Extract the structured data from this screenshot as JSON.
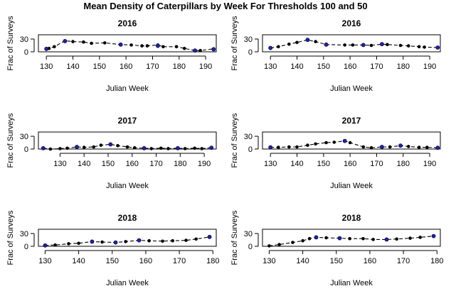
{
  "figure": {
    "title": "Mean Density of Caterpillars by Week For Thresholds 100 and 50"
  },
  "chart_data": [
    {
      "type": "line",
      "title": "2016",
      "xlabel": "Julian Week",
      "ylabel": "Frac of Surveys",
      "xlim": [
        127,
        194
      ],
      "ylim": [
        0,
        40
      ],
      "xticks": [
        130,
        140,
        150,
        160,
        170,
        180,
        190
      ],
      "yticks": [
        0,
        30
      ],
      "series": [
        {
          "values": [
            [
              130,
              6
            ],
            [
              131,
              8
            ],
            [
              133,
              12
            ],
            [
              137,
              26
            ],
            [
              140,
              24
            ],
            [
              144,
              23
            ],
            [
              147,
              20
            ],
            [
              152,
              21
            ],
            [
              158,
              17
            ],
            [
              162,
              16
            ],
            [
              166,
              14
            ],
            [
              168,
              14
            ],
            [
              172,
              16
            ],
            [
              174,
              12
            ],
            [
              179,
              12
            ],
            [
              182,
              8
            ],
            [
              186,
              3
            ],
            [
              188,
              3
            ],
            [
              193,
              7
            ]
          ]
        },
        {
          "values": [
            [
              130,
              7
            ],
            [
              137,
              25
            ],
            [
              158,
              17
            ],
            [
              172,
              14
            ],
            [
              186,
              3
            ],
            [
              193,
              6
            ]
          ],
          "color": "#1f1fbf"
        }
      ]
    },
    {
      "type": "line",
      "title": "2016",
      "xlabel": "Julian Week",
      "ylabel": "Frac of Surveys",
      "xlim": [
        127,
        194
      ],
      "ylim": [
        0,
        40
      ],
      "xticks": [
        130,
        140,
        150,
        160,
        170,
        180,
        190
      ],
      "yticks": [
        0,
        30
      ],
      "series": [
        {
          "values": [
            [
              130,
              9
            ],
            [
              133,
              12
            ],
            [
              137,
              18
            ],
            [
              140,
              22
            ],
            [
              144,
              28
            ],
            [
              147,
              24
            ],
            [
              151,
              17
            ],
            [
              158,
              16
            ],
            [
              161,
              16
            ],
            [
              165,
              16
            ],
            [
              168,
              15
            ],
            [
              172,
              18
            ],
            [
              174,
              17
            ],
            [
              179,
              15
            ],
            [
              182,
              14
            ],
            [
              186,
              12
            ],
            [
              188,
              11
            ],
            [
              193,
              10
            ]
          ]
        },
        {
          "values": [
            [
              130,
              9
            ],
            [
              144,
              28
            ],
            [
              151,
              17
            ],
            [
              165,
              16
            ],
            [
              172,
              18
            ],
            [
              193,
              10
            ]
          ],
          "color": "#1f1fbf"
        }
      ]
    },
    {
      "type": "line",
      "title": "2017",
      "xlabel": "Julian Week",
      "ylabel": "Frac of Surveys",
      "xlim": [
        121,
        195
      ],
      "ylim": [
        0,
        40
      ],
      "xticks": [
        130,
        140,
        150,
        160,
        170,
        180,
        190
      ],
      "yticks": [
        0,
        30
      ],
      "series": [
        {
          "values": [
            [
              123,
              2
            ],
            [
              126,
              0
            ],
            [
              130,
              1
            ],
            [
              133,
              2
            ],
            [
              137,
              5
            ],
            [
              140,
              4
            ],
            [
              144,
              5
            ],
            [
              147,
              9
            ],
            [
              151,
              11
            ],
            [
              154,
              8
            ],
            [
              158,
              5
            ],
            [
              161,
              3
            ],
            [
              165,
              2
            ],
            [
              168,
              1
            ],
            [
              172,
              2
            ],
            [
              175,
              1
            ],
            [
              179,
              2
            ],
            [
              182,
              1
            ],
            [
              186,
              2
            ],
            [
              189,
              1
            ],
            [
              193,
              3
            ]
          ]
        },
        {
          "values": [
            [
              123,
              2
            ],
            [
              137,
              5
            ],
            [
              151,
              11
            ],
            [
              165,
              2
            ],
            [
              179,
              2
            ],
            [
              193,
              3
            ]
          ],
          "color": "#1f1fbf"
        }
      ]
    },
    {
      "type": "line",
      "title": "2017",
      "xlabel": "Julian Week",
      "ylabel": "Frac of Surveys",
      "xlim": [
        127,
        194
      ],
      "ylim": [
        0,
        40
      ],
      "xticks": [
        130,
        140,
        150,
        160,
        170,
        180,
        190
      ],
      "yticks": [
        0,
        30
      ],
      "series": [
        {
          "values": [
            [
              130,
              4
            ],
            [
              133,
              4
            ],
            [
              137,
              5
            ],
            [
              140,
              5
            ],
            [
              144,
              9
            ],
            [
              147,
              12
            ],
            [
              151,
              15
            ],
            [
              154,
              16
            ],
            [
              158,
              19
            ],
            [
              160,
              15
            ],
            [
              165,
              5
            ],
            [
              168,
              3
            ],
            [
              172,
              5
            ],
            [
              175,
              5
            ],
            [
              179,
              8
            ],
            [
              182,
              6
            ],
            [
              186,
              4
            ],
            [
              189,
              4
            ],
            [
              193,
              3
            ]
          ]
        },
        {
          "values": [
            [
              130,
              4
            ],
            [
              158,
              19
            ],
            [
              172,
              5
            ],
            [
              179,
              8
            ],
            [
              193,
              3
            ]
          ],
          "color": "#1f1fbf"
        }
      ]
    },
    {
      "type": "line",
      "title": "2018",
      "xlabel": "Julian Week",
      "ylabel": "Frac of Surveys",
      "xlim": [
        128,
        181
      ],
      "ylim": [
        0,
        40
      ],
      "xticks": [
        130,
        140,
        150,
        160,
        170,
        180
      ],
      "yticks": [
        0,
        30
      ],
      "series": [
        {
          "values": [
            [
              130,
              2
            ],
            [
              133,
              3
            ],
            [
              137,
              6
            ],
            [
              140,
              7
            ],
            [
              144,
              11
            ],
            [
              147,
              10
            ],
            [
              151,
              9
            ],
            [
              154,
              11
            ],
            [
              158,
              14
            ],
            [
              161,
              13
            ],
            [
              165,
              12
            ],
            [
              168,
              13
            ],
            [
              172,
              14
            ],
            [
              175,
              17
            ],
            [
              179,
              22
            ]
          ]
        },
        {
          "values": [
            [
              130,
              2
            ],
            [
              144,
              11
            ],
            [
              151,
              9
            ],
            [
              158,
              14
            ],
            [
              179,
              22
            ]
          ],
          "color": "#1f1fbf"
        }
      ]
    },
    {
      "type": "line",
      "title": "2018",
      "xlabel": "Julian Week",
      "ylabel": "Frac of Surveys",
      "xlim": [
        128,
        181
      ],
      "ylim": [
        0,
        40
      ],
      "xticks": [
        130,
        140,
        150,
        160,
        170,
        180
      ],
      "yticks": [
        0,
        30
      ],
      "series": [
        {
          "values": [
            [
              130,
              1
            ],
            [
              133,
              4
            ],
            [
              137,
              9
            ],
            [
              140,
              13
            ],
            [
              142,
              18
            ],
            [
              144,
              21
            ],
            [
              147,
              20
            ],
            [
              151,
              19
            ],
            [
              154,
              18
            ],
            [
              158,
              18
            ],
            [
              161,
              16
            ],
            [
              165,
              16
            ],
            [
              168,
              17
            ],
            [
              172,
              19
            ],
            [
              175,
              21
            ],
            [
              179,
              24
            ]
          ]
        },
        {
          "values": [
            [
              144,
              21
            ],
            [
              151,
              19
            ],
            [
              165,
              16
            ],
            [
              179,
              24
            ]
          ],
          "color": "#1f1fbf"
        }
      ]
    }
  ]
}
